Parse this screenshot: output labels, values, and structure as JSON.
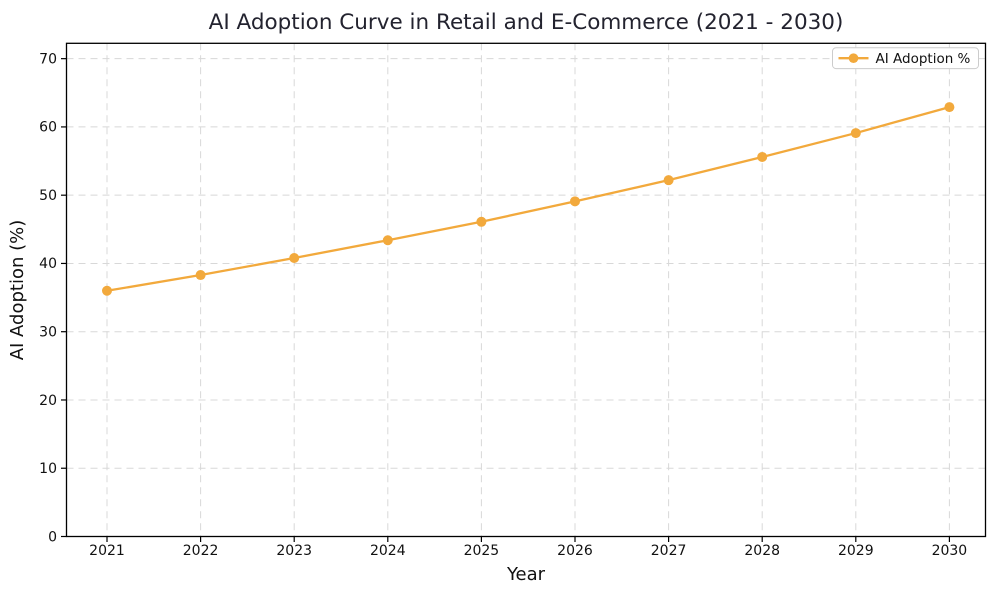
{
  "chart_data": {
    "type": "line",
    "title": "AI Adoption Curve in Retail and E-Commerce (2021 - 2030)",
    "xlabel": "Year",
    "ylabel": "AI Adoption (%)",
    "categories": [
      "2021",
      "2022",
      "2023",
      "2024",
      "2025",
      "2026",
      "2027",
      "2028",
      "2029",
      "2030"
    ],
    "series": [
      {
        "name": "AI Adoption %",
        "values": [
          36.0,
          38.3,
          40.8,
          43.4,
          46.1,
          49.1,
          52.2,
          55.6,
          59.1,
          62.9
        ],
        "color": "#F2A93C",
        "marker": "circle",
        "linestyle": "solid"
      }
    ],
    "ylim": [
      0,
      72.25
    ],
    "yticks": [
      0,
      10,
      20,
      30,
      40,
      50,
      60,
      70
    ],
    "grid": {
      "visible": true,
      "linestyle": "dashed",
      "color": "#D8D8D8"
    },
    "legend": {
      "position": "upper right",
      "entries": [
        "AI Adoption %"
      ]
    },
    "axis_color": "#000000",
    "background": "#FFFFFF"
  }
}
